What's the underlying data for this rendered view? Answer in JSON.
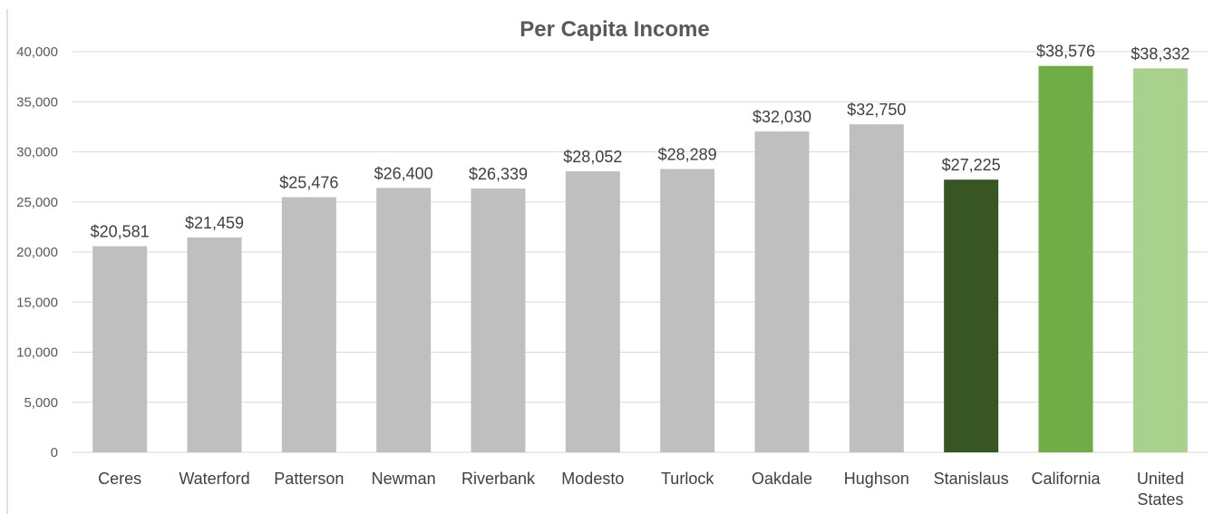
{
  "chart_data": {
    "type": "bar",
    "title": "Per Capita Income",
    "xlabel": "",
    "ylabel": "",
    "ylim": [
      0,
      40000
    ],
    "yticks": [
      0,
      5000,
      10000,
      15000,
      20000,
      25000,
      30000,
      35000,
      40000
    ],
    "ytick_labels": [
      "0",
      "5,000",
      "10,000",
      "15,000",
      "20,000",
      "25,000",
      "30,000",
      "35,000",
      "40,000"
    ],
    "grid": true,
    "legend": "none",
    "categories": [
      "Ceres",
      "Waterford",
      "Patterson",
      "Newman",
      "Riverbank",
      "Modesto",
      "Turlock",
      "Oakdale",
      "Hughson",
      "Stanislaus",
      "California",
      "United States"
    ],
    "values": [
      20581,
      21459,
      25476,
      26400,
      26339,
      28052,
      28289,
      32030,
      32750,
      27225,
      38576,
      38332
    ],
    "data_labels": [
      "$20,581",
      "$21,459",
      "$25,476",
      "$26,400",
      "$26,339",
      "$28,052",
      "$28,289",
      "$32,030",
      "$32,750",
      "$27,225",
      "$38,576",
      "$38,332"
    ],
    "colors": [
      "#bfbfbf",
      "#bfbfbf",
      "#bfbfbf",
      "#bfbfbf",
      "#bfbfbf",
      "#bfbfbf",
      "#bfbfbf",
      "#bfbfbf",
      "#bfbfbf",
      "#375623",
      "#70ad47",
      "#a9d18e"
    ]
  }
}
